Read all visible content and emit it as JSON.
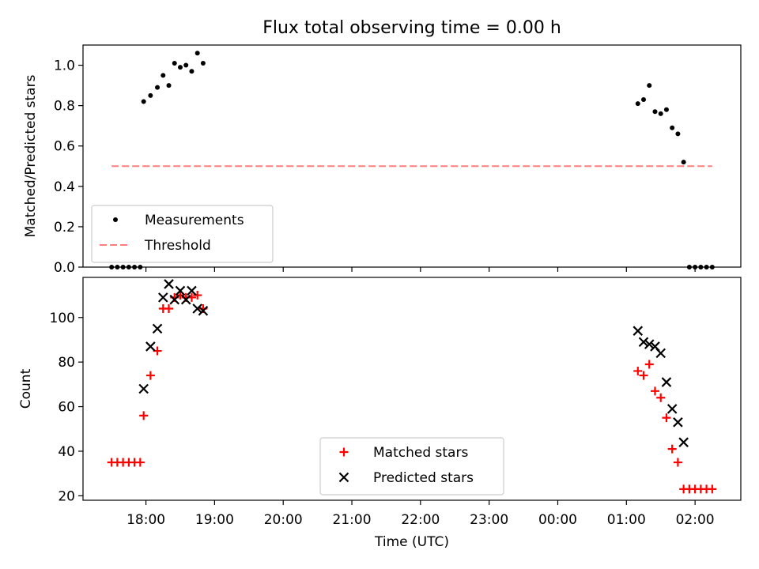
{
  "figure_title": "Flux total observing time = 0.00 h",
  "chart_data": [
    {
      "type": "scatter",
      "title": "Flux total observing time = 0.00 h",
      "xlabel": "",
      "ylabel": "Matched/Predicted stars",
      "x_unit": "time (UTC)",
      "xlim": [
        "17:05",
        "02:40"
      ],
      "ylim": [
        0,
        1.1
      ],
      "yticks": [
        0.0,
        0.2,
        0.4,
        0.6,
        0.8,
        1.0
      ],
      "ytick_labels": [
        "0.0",
        "0.2",
        "0.4",
        "0.6",
        "0.8",
        "1.0"
      ],
      "grid": false,
      "legend": {
        "placement": "lower-left",
        "entries": [
          "Measurements",
          "Threshold"
        ]
      },
      "series": [
        {
          "name": "Measurements",
          "kind": "scatter",
          "color": "#000000",
          "marker": "dot",
          "points": [
            {
              "x": "17:30",
              "y": 0.0
            },
            {
              "x": "17:35",
              "y": 0.0
            },
            {
              "x": "17:40",
              "y": 0.0
            },
            {
              "x": "17:45",
              "y": 0.0
            },
            {
              "x": "17:50",
              "y": 0.0
            },
            {
              "x": "17:55",
              "y": 0.0
            },
            {
              "x": "17:58",
              "y": 0.82
            },
            {
              "x": "18:04",
              "y": 0.85
            },
            {
              "x": "18:10",
              "y": 0.89
            },
            {
              "x": "18:15",
              "y": 0.95
            },
            {
              "x": "18:20",
              "y": 0.9
            },
            {
              "x": "18:25",
              "y": 1.01
            },
            {
              "x": "18:30",
              "y": 0.99
            },
            {
              "x": "18:35",
              "y": 1.0
            },
            {
              "x": "18:40",
              "y": 0.97
            },
            {
              "x": "18:45",
              "y": 1.06
            },
            {
              "x": "18:50",
              "y": 1.01
            },
            {
              "x": "01:10",
              "y": 0.81
            },
            {
              "x": "01:15",
              "y": 0.83
            },
            {
              "x": "01:20",
              "y": 0.9
            },
            {
              "x": "01:25",
              "y": 0.77
            },
            {
              "x": "01:30",
              "y": 0.76
            },
            {
              "x": "01:35",
              "y": 0.78
            },
            {
              "x": "01:40",
              "y": 0.69
            },
            {
              "x": "01:45",
              "y": 0.66
            },
            {
              "x": "01:50",
              "y": 0.52
            },
            {
              "x": "01:55",
              "y": 0.0
            },
            {
              "x": "02:00",
              "y": 0.0
            },
            {
              "x": "02:05",
              "y": 0.0
            },
            {
              "x": "02:10",
              "y": 0.0
            },
            {
              "x": "02:15",
              "y": 0.0
            }
          ]
        },
        {
          "name": "Threshold",
          "kind": "line",
          "style": "dashed",
          "color": "#ff7f7f",
          "points": [
            {
              "x": "17:30",
              "y": 0.5
            },
            {
              "x": "02:15",
              "y": 0.5
            }
          ]
        }
      ]
    },
    {
      "type": "scatter",
      "xlabel": "Time (UTC)",
      "ylabel": "Count",
      "x_unit": "time (UTC)",
      "xlim": [
        "17:05",
        "02:40"
      ],
      "ylim": [
        18,
        118
      ],
      "yticks": [
        20,
        40,
        60,
        80,
        100
      ],
      "ytick_labels": [
        "20",
        "40",
        "60",
        "80",
        "100"
      ],
      "xticks": [
        "18:00",
        "19:00",
        "20:00",
        "21:00",
        "22:00",
        "23:00",
        "00:00",
        "01:00",
        "02:00"
      ],
      "xtick_labels": [
        "18:00",
        "19:00",
        "20:00",
        "21:00",
        "22:00",
        "23:00",
        "00:00",
        "01:00",
        "02:00"
      ],
      "grid": false,
      "legend": {
        "placement": "lower-center",
        "entries": [
          "Matched stars",
          "Predicted stars"
        ]
      },
      "series": [
        {
          "name": "Matched stars",
          "kind": "scatter",
          "color": "#ff0000",
          "marker": "plus",
          "points": [
            {
              "x": "17:30",
              "y": 35
            },
            {
              "x": "17:35",
              "y": 35
            },
            {
              "x": "17:40",
              "y": 35
            },
            {
              "x": "17:45",
              "y": 35
            },
            {
              "x": "17:50",
              "y": 35
            },
            {
              "x": "17:55",
              "y": 35
            },
            {
              "x": "17:58",
              "y": 56
            },
            {
              "x": "18:04",
              "y": 74
            },
            {
              "x": "18:10",
              "y": 85
            },
            {
              "x": "18:15",
              "y": 104
            },
            {
              "x": "18:20",
              "y": 104
            },
            {
              "x": "18:25",
              "y": 109
            },
            {
              "x": "18:30",
              "y": 110
            },
            {
              "x": "18:35",
              "y": 109
            },
            {
              "x": "18:40",
              "y": 109
            },
            {
              "x": "18:45",
              "y": 110
            },
            {
              "x": "18:50",
              "y": 104
            },
            {
              "x": "01:10",
              "y": 76
            },
            {
              "x": "01:15",
              "y": 74
            },
            {
              "x": "01:20",
              "y": 79
            },
            {
              "x": "01:25",
              "y": 67
            },
            {
              "x": "01:30",
              "y": 64
            },
            {
              "x": "01:35",
              "y": 55
            },
            {
              "x": "01:40",
              "y": 41
            },
            {
              "x": "01:45",
              "y": 35
            },
            {
              "x": "01:50",
              "y": 23
            },
            {
              "x": "01:55",
              "y": 23
            },
            {
              "x": "02:00",
              "y": 23
            },
            {
              "x": "02:05",
              "y": 23
            },
            {
              "x": "02:10",
              "y": 23
            },
            {
              "x": "02:15",
              "y": 23
            }
          ]
        },
        {
          "name": "Predicted stars",
          "kind": "scatter",
          "color": "#000000",
          "marker": "x",
          "points": [
            {
              "x": "17:58",
              "y": 68
            },
            {
              "x": "18:04",
              "y": 87
            },
            {
              "x": "18:10",
              "y": 95
            },
            {
              "x": "18:15",
              "y": 109
            },
            {
              "x": "18:20",
              "y": 115
            },
            {
              "x": "18:25",
              "y": 108
            },
            {
              "x": "18:30",
              "y": 112
            },
            {
              "x": "18:35",
              "y": 108
            },
            {
              "x": "18:40",
              "y": 112
            },
            {
              "x": "18:45",
              "y": 104
            },
            {
              "x": "18:50",
              "y": 103
            },
            {
              "x": "01:10",
              "y": 94
            },
            {
              "x": "01:15",
              "y": 89
            },
            {
              "x": "01:20",
              "y": 88
            },
            {
              "x": "01:25",
              "y": 87
            },
            {
              "x": "01:30",
              "y": 84
            },
            {
              "x": "01:35",
              "y": 71
            },
            {
              "x": "01:40",
              "y": 59
            },
            {
              "x": "01:45",
              "y": 53
            },
            {
              "x": "01:50",
              "y": 44
            }
          ]
        }
      ]
    }
  ]
}
